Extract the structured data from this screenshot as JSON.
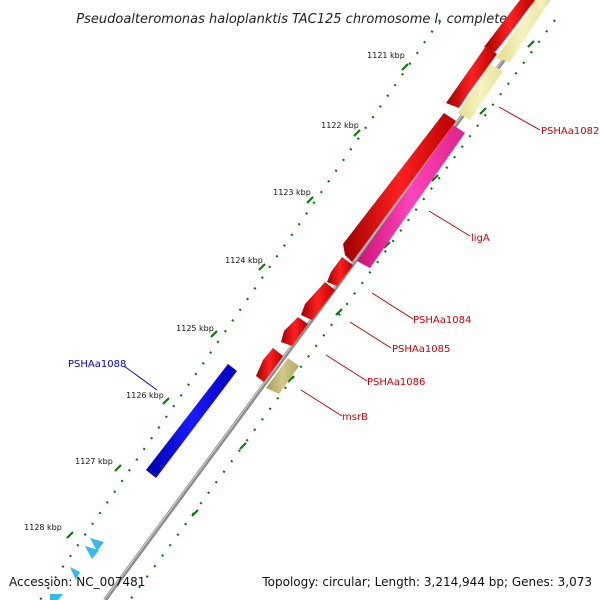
{
  "title": "Pseudoalteromonas haloplanktis TAC125 chromosome I, complete...",
  "footer": {
    "accession": "Accession: NC_007481",
    "summary": "Topology: circular; Length: 3,214,944 bp; Genes: 3,073"
  },
  "scale_labels": [
    "1121 kbp",
    "1122 kbp",
    "1123 kbp",
    "1124 kbp",
    "1125 kbp",
    "1126 kbp",
    "1127 kbp",
    "1128 kbp"
  ],
  "gene_labels": [
    "PSHAa1082",
    "ligA",
    "PSHAa1084",
    "PSHAa1085",
    "PSHAa1086",
    "msrB",
    "PSHAa1088"
  ],
  "colors": {
    "backbone": "#8c8c8c",
    "red_gene": "#ee0000",
    "pink_gene": "#ff33aa",
    "pale_gene": "#f5eeaa",
    "khaki_gene": "#c8bf7a",
    "blue_gene": "#0000ee",
    "cyan_gene": "#33bbee",
    "tick": "#0a7a0a",
    "label_red": "#cc0000",
    "label_blue": "#0000cc"
  }
}
